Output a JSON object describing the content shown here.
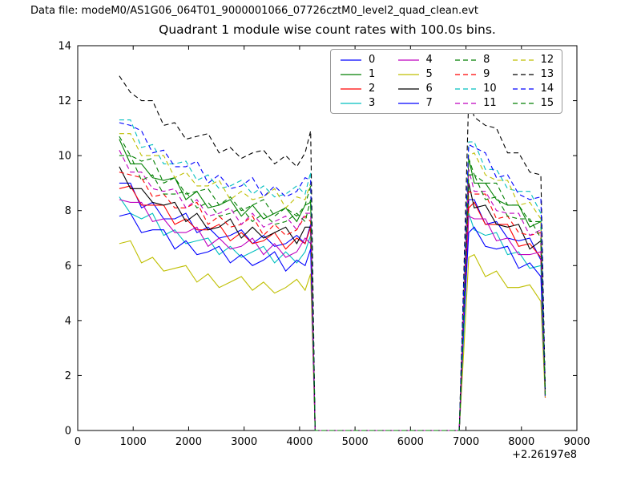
{
  "header": {
    "data_file_label": "Data file: modeM0/AS1G06_064T01_9000001066_07726cztM0_level2_quad_clean.evt",
    "title": "Quadrant 1 module wise count rates with 100.0s bins."
  },
  "chart_data": {
    "type": "line",
    "title": "Quadrant 1 module wise count rates with 100.0s bins.",
    "xlabel": "",
    "ylabel": "",
    "xlim": [
      0,
      9000
    ],
    "ylim": [
      0,
      14
    ],
    "xticks": [
      0,
      1000,
      2000,
      3000,
      4000,
      5000,
      6000,
      7000,
      8000,
      9000
    ],
    "yticks": [
      0,
      2,
      4,
      6,
      8,
      10,
      12,
      14
    ],
    "x_offset_label": "+2.26197e8",
    "grid": false,
    "legend_position": "upper center",
    "x": [
      750,
      950,
      1150,
      1350,
      1550,
      1750,
      1950,
      2150,
      2350,
      2550,
      2750,
      2950,
      3150,
      3350,
      3550,
      3750,
      3950,
      4100,
      4200,
      4280,
      4350,
      5000,
      6000,
      6880,
      6960,
      7050,
      7150,
      7350,
      7550,
      7750,
      7950,
      8150,
      8350,
      8430
    ],
    "series": [
      {
        "name": "0",
        "color": "#0000ff",
        "dash": false,
        "values": [
          9.0,
          9.0,
          8.1,
          8.3,
          7.7,
          7.7,
          7.9,
          7.2,
          7.4,
          7.0,
          7.1,
          7.3,
          6.8,
          7.1,
          6.7,
          6.8,
          7.1,
          6.8,
          7.5,
          0,
          0,
          0,
          0,
          0,
          3.9,
          8.4,
          8.4,
          7.5,
          7.6,
          7.0,
          6.9,
          7.0,
          6.2,
          1.2
        ]
      },
      {
        "name": "1",
        "color": "#007f00",
        "dash": false,
        "values": [
          10.6,
          9.7,
          9.7,
          9.2,
          9.1,
          9.2,
          8.4,
          8.7,
          8.1,
          8.2,
          8.4,
          7.8,
          8.2,
          7.7,
          7.9,
          8.1,
          7.6,
          8.2,
          8.3,
          0,
          0,
          0,
          0,
          0,
          4.6,
          9.9,
          9.0,
          9.0,
          8.4,
          8.2,
          8.2,
          7.4,
          7.6,
          1.3
        ]
      },
      {
        "name": "2",
        "color": "#ff0000",
        "dash": false,
        "values": [
          8.8,
          8.9,
          8.2,
          8.2,
          8.2,
          7.5,
          7.7,
          7.3,
          7.3,
          7.5,
          6.9,
          7.2,
          6.8,
          6.9,
          7.2,
          6.6,
          7.0,
          6.8,
          7.4,
          0,
          0,
          0,
          0,
          0,
          4.4,
          8.1,
          8.3,
          7.5,
          7.5,
          7.5,
          6.7,
          6.8,
          6.3,
          1.4
        ]
      },
      {
        "name": "3",
        "color": "#00bfbf",
        "dash": false,
        "values": [
          8.5,
          7.9,
          7.7,
          7.9,
          7.1,
          7.3,
          6.8,
          6.9,
          7.0,
          6.4,
          6.7,
          6.3,
          6.5,
          6.7,
          6.1,
          6.5,
          6.1,
          6.5,
          7.1,
          0,
          0,
          0,
          0,
          0,
          3.5,
          7.9,
          7.3,
          7.1,
          7.2,
          6.4,
          6.5,
          5.9,
          6.0,
          1.5
        ]
      },
      {
        "name": "4",
        "color": "#bf00bf",
        "dash": false,
        "values": [
          8.4,
          8.3,
          8.3,
          7.6,
          7.7,
          7.2,
          7.2,
          7.4,
          6.7,
          7.0,
          6.6,
          6.7,
          7.0,
          6.4,
          6.8,
          6.3,
          6.5,
          7.0,
          6.8,
          0,
          0,
          0,
          0,
          0,
          4.0,
          7.8,
          7.7,
          7.7,
          6.9,
          7.0,
          6.4,
          6.4,
          6.5,
          1.2
        ]
      },
      {
        "name": "5",
        "color": "#bfbf00",
        "dash": false,
        "values": [
          6.8,
          6.9,
          6.1,
          6.3,
          5.8,
          5.9,
          6.0,
          5.4,
          5.7,
          5.2,
          5.4,
          5.6,
          5.1,
          5.4,
          5.0,
          5.2,
          5.5,
          5.1,
          5.7,
          0,
          0,
          0,
          0,
          0,
          2.9,
          6.3,
          6.4,
          5.6,
          5.8,
          5.2,
          5.2,
          5.3,
          4.7,
          1.2
        ]
      },
      {
        "name": "6",
        "color": "#000000",
        "dash": false,
        "values": [
          9.6,
          8.8,
          8.8,
          8.3,
          8.2,
          8.3,
          7.6,
          7.9,
          7.3,
          7.4,
          7.7,
          7.0,
          7.4,
          7.0,
          7.2,
          7.4,
          6.8,
          7.4,
          7.4,
          0,
          0,
          0,
          0,
          0,
          4.2,
          9.0,
          8.1,
          8.2,
          7.5,
          7.4,
          7.5,
          6.6,
          6.9,
          1.3
        ]
      },
      {
        "name": "7",
        "color": "#0000ff",
        "dash": false,
        "values": [
          7.8,
          7.9,
          7.2,
          7.3,
          7.3,
          6.6,
          6.9,
          6.4,
          6.5,
          6.7,
          6.1,
          6.4,
          6.0,
          6.2,
          6.5,
          5.8,
          6.2,
          6.0,
          6.6,
          0,
          0,
          0,
          0,
          0,
          3.9,
          7.2,
          7.4,
          6.7,
          6.6,
          6.7,
          5.9,
          6.1,
          5.6,
          1.4
        ]
      },
      {
        "name": "8",
        "color": "#007f00",
        "dash": true,
        "values": [
          10.7,
          10.0,
          9.8,
          9.9,
          9.0,
          9.2,
          8.6,
          8.7,
          8.8,
          8.2,
          8.5,
          8.0,
          8.2,
          8.4,
          7.8,
          8.1,
          7.8,
          8.2,
          8.9,
          0,
          0,
          0,
          0,
          0,
          4.5,
          9.9,
          9.3,
          9.0,
          9.0,
          8.2,
          8.2,
          7.6,
          7.6,
          1.5
        ]
      },
      {
        "name": "9",
        "color": "#ff0000",
        "dash": true,
        "values": [
          9.4,
          9.3,
          9.2,
          8.5,
          8.6,
          8.1,
          8.1,
          8.3,
          7.5,
          7.8,
          7.4,
          7.5,
          7.8,
          7.1,
          7.5,
          7.1,
          7.3,
          7.8,
          7.6,
          0,
          0,
          0,
          0,
          0,
          4.5,
          8.7,
          8.6,
          8.6,
          7.7,
          7.8,
          7.2,
          7.1,
          7.2,
          1.2
        ]
      },
      {
        "name": "10",
        "color": "#00bfbf",
        "dash": true,
        "values": [
          11.3,
          11.3,
          10.3,
          10.4,
          9.7,
          9.7,
          9.8,
          9.1,
          9.3,
          8.8,
          8.9,
          9.1,
          8.6,
          8.9,
          8.5,
          8.6,
          8.9,
          8.6,
          9.4,
          0,
          0,
          0,
          0,
          0,
          4.9,
          10.5,
          10.5,
          9.5,
          9.5,
          8.8,
          8.7,
          8.7,
          7.9,
          1.3
        ]
      },
      {
        "name": "11",
        "color": "#bf00bf",
        "dash": true,
        "values": [
          10.2,
          9.4,
          9.4,
          8.8,
          8.7,
          8.8,
          8.1,
          8.4,
          7.8,
          7.9,
          8.1,
          7.5,
          7.9,
          7.4,
          7.6,
          7.8,
          7.3,
          7.9,
          7.9,
          0,
          0,
          0,
          0,
          0,
          4.5,
          9.5,
          8.7,
          8.7,
          8.0,
          7.9,
          7.9,
          7.1,
          7.3,
          1.4
        ]
      },
      {
        "name": "12",
        "color": "#bfbf00",
        "dash": true,
        "values": [
          10.8,
          10.8,
          10.0,
          10.0,
          10.0,
          9.2,
          9.4,
          8.9,
          8.9,
          9.1,
          8.4,
          8.7,
          8.4,
          8.5,
          8.8,
          8.1,
          8.5,
          8.4,
          9.0,
          0,
          0,
          0,
          0,
          0,
          5.3,
          10.0,
          10.1,
          9.3,
          9.1,
          9.1,
          8.2,
          8.3,
          7.7,
          1.2
        ]
      },
      {
        "name": "13",
        "color": "#000000",
        "dash": true,
        "values": [
          12.9,
          12.3,
          12.0,
          12.0,
          11.1,
          11.2,
          10.6,
          10.7,
          10.8,
          10.1,
          10.3,
          9.9,
          10.1,
          10.2,
          9.7,
          10.0,
          9.6,
          10.1,
          10.9,
          0,
          0,
          0,
          0,
          0,
          5.6,
          12.2,
          11.4,
          11.1,
          11.0,
          10.1,
          10.1,
          9.4,
          9.3,
          1.5
        ]
      },
      {
        "name": "14",
        "color": "#0000ff",
        "dash": true,
        "values": [
          11.2,
          11.1,
          10.9,
          10.1,
          10.2,
          9.6,
          9.6,
          9.8,
          9.0,
          9.3,
          8.8,
          8.9,
          9.2,
          8.5,
          8.9,
          8.5,
          8.7,
          9.2,
          9.1,
          0,
          0,
          0,
          0,
          0,
          5.3,
          10.4,
          10.3,
          10.1,
          9.2,
          9.3,
          8.6,
          8.4,
          8.5,
          1.2
        ]
      },
      {
        "name": "15",
        "color": "#007f00",
        "dash": true,
        "values": [
          10.0,
          10.0,
          9.1,
          9.3,
          8.6,
          8.6,
          8.7,
          8.1,
          8.3,
          7.8,
          7.9,
          8.1,
          7.6,
          7.9,
          7.5,
          7.6,
          7.9,
          7.6,
          8.4,
          0,
          0,
          0,
          0,
          0,
          4.3,
          9.3,
          9.3,
          8.4,
          8.5,
          7.8,
          7.7,
          7.7,
          7.0,
          1.3
        ]
      }
    ]
  },
  "colors": {
    "background": "#ffffff",
    "axis": "#000000",
    "legend_border": "#999999"
  }
}
